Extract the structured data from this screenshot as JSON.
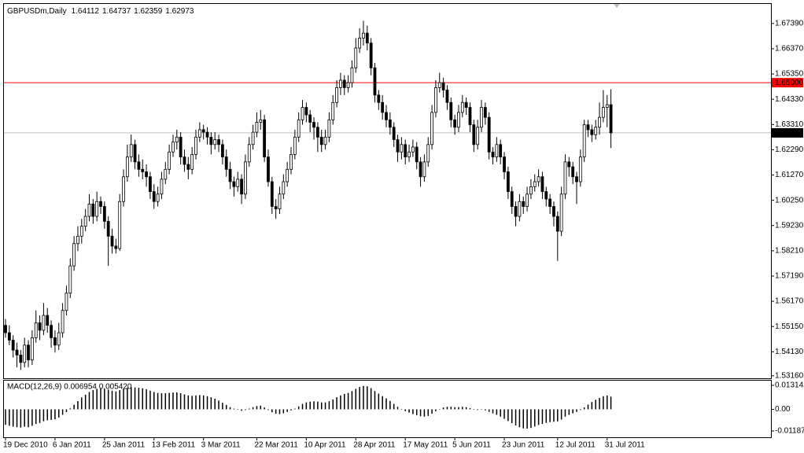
{
  "chart_data": {
    "type": "candlestick",
    "symbol": "GBPUSDm,Daily",
    "indicator_title": "MACD(12,26,9) 0.006954 0.005420",
    "colors": {
      "bull": "#ffffff",
      "bear": "#000000",
      "wick": "#000000",
      "macd": "#000000"
    },
    "ylim": [
      1.5306,
      1.6818
    ],
    "yticks": [
      {
        "value": 1.6739,
        "label": "1.67390"
      },
      {
        "value": 1.6637,
        "label": "1.66370"
      },
      {
        "value": 1.6535,
        "label": "1.65350"
      },
      {
        "value": 1.6433,
        "label": "1.64330"
      },
      {
        "value": 1.6331,
        "label": "1.63310"
      },
      {
        "value": 1.6229,
        "label": "1.62290"
      },
      {
        "value": 1.6127,
        "label": "1.61270"
      },
      {
        "value": 1.6025,
        "label": "1.60250"
      },
      {
        "value": 1.5923,
        "label": "1.59230"
      },
      {
        "value": 1.5821,
        "label": "1.58210"
      },
      {
        "value": 1.5719,
        "label": "1.57190"
      },
      {
        "value": 1.5617,
        "label": "1.56170"
      },
      {
        "value": 1.5515,
        "label": "1.55150"
      },
      {
        "value": 1.5413,
        "label": "1.54130"
      },
      {
        "value": 1.5316,
        "label": "1.53160"
      }
    ],
    "level_line": {
      "value": 1.65,
      "label": "1.65000",
      "color": "#ff0000"
    },
    "price_line_color": "#c0c0c0",
    "macd_ylim": [
      -0.0153,
      0.0157
    ],
    "macd_yticks": [
      0.013143,
      {
        "value": 0,
        "label": "0.00"
      },
      -0.01187
    ],
    "categories": [
      "19 Dec 2010",
      null,
      null,
      null,
      null,
      null,
      null,
      null,
      null,
      null,
      null,
      null,
      null,
      "6 Jan 2011",
      null,
      null,
      null,
      null,
      null,
      null,
      null,
      null,
      null,
      null,
      null,
      null,
      "25 Jan 2011",
      null,
      null,
      null,
      null,
      null,
      null,
      null,
      null,
      null,
      null,
      null,
      null,
      "13 Feb 2011",
      null,
      null,
      null,
      null,
      null,
      null,
      null,
      null,
      null,
      null,
      null,
      null,
      "3 Mar 2011",
      null,
      null,
      null,
      null,
      null,
      null,
      null,
      null,
      null,
      null,
      null,
      null,
      null,
      "22 Mar 2011",
      null,
      null,
      null,
      null,
      null,
      null,
      null,
      null,
      null,
      null,
      null,
      null,
      "10 Apr 2011",
      null,
      null,
      null,
      null,
      null,
      null,
      null,
      null,
      null,
      null,
      null,
      null,
      "28 Apr 2011",
      null,
      null,
      null,
      null,
      null,
      null,
      null,
      null,
      null,
      null,
      null,
      null,
      "17 May 2011",
      null,
      null,
      null,
      null,
      null,
      null,
      null,
      null,
      null,
      null,
      null,
      null,
      "5 Jun 2011",
      null,
      null,
      null,
      null,
      null,
      null,
      null,
      null,
      null,
      null,
      null,
      null,
      "23 Jun 2011",
      null,
      null,
      null,
      null,
      null,
      null,
      null,
      null,
      null,
      null,
      null,
      null,
      null,
      "12 Jul 2011",
      null,
      null,
      null,
      null,
      null,
      null,
      null,
      null,
      null,
      null,
      null,
      null,
      "31 Jul 2011",
      null
    ],
    "candles": [
      [
        1.552,
        1.5545,
        1.547,
        1.549
      ],
      [
        1.549,
        1.552,
        1.544,
        1.546
      ],
      [
        1.546,
        1.548,
        1.539,
        1.542
      ],
      [
        1.542,
        1.545,
        1.535,
        1.54
      ],
      [
        1.54,
        1.542,
        1.534,
        1.537
      ],
      [
        1.537,
        1.547,
        1.535,
        1.544
      ],
      [
        1.544,
        1.546,
        1.535,
        1.538
      ],
      [
        1.538,
        1.55,
        1.536,
        1.547
      ],
      [
        1.547,
        1.558,
        1.545,
        1.553
      ],
      [
        1.553,
        1.556,
        1.546,
        1.55
      ],
      [
        1.55,
        1.561,
        1.548,
        1.556
      ],
      [
        1.556,
        1.559,
        1.549,
        1.552
      ],
      [
        1.552,
        1.554,
        1.543,
        1.547
      ],
      [
        1.547,
        1.55,
        1.541,
        1.544
      ],
      [
        1.544,
        1.553,
        1.542,
        1.549
      ],
      [
        1.549,
        1.561,
        1.547,
        1.558
      ],
      [
        1.558,
        1.568,
        1.556,
        1.565
      ],
      [
        1.565,
        1.579,
        1.563,
        1.576
      ],
      [
        1.576,
        1.588,
        1.574,
        1.585
      ],
      [
        1.585,
        1.592,
        1.582,
        1.588
      ],
      [
        1.588,
        1.595,
        1.585,
        1.592
      ],
      [
        1.592,
        1.599,
        1.59,
        1.596
      ],
      [
        1.596,
        1.605,
        1.594,
        1.601
      ],
      [
        1.601,
        1.603,
        1.593,
        1.596
      ],
      [
        1.596,
        1.606,
        1.594,
        1.602
      ],
      [
        1.602,
        1.604,
        1.597,
        1.6
      ],
      [
        1.6,
        1.602,
        1.591,
        1.594
      ],
      [
        1.594,
        1.596,
        1.576,
        1.588
      ],
      [
        1.588,
        1.591,
        1.581,
        1.584
      ],
      [
        1.584,
        1.587,
        1.581,
        1.583
      ],
      [
        1.583,
        1.605,
        1.582,
        1.602
      ],
      [
        1.602,
        1.615,
        1.6,
        1.612
      ],
      [
        1.612,
        1.625,
        1.61,
        1.62
      ],
      [
        1.62,
        1.629,
        1.618,
        1.625
      ],
      [
        1.625,
        1.627,
        1.615,
        1.618
      ],
      [
        1.618,
        1.621,
        1.612,
        1.615
      ],
      [
        1.615,
        1.619,
        1.611,
        1.614
      ],
      [
        1.614,
        1.617,
        1.608,
        1.612
      ],
      [
        1.612,
        1.614,
        1.603,
        1.606
      ],
      [
        1.606,
        1.609,
        1.599,
        1.602
      ],
      [
        1.602,
        1.608,
        1.6,
        1.605
      ],
      [
        1.605,
        1.614,
        1.603,
        1.611
      ],
      [
        1.611,
        1.618,
        1.609,
        1.615
      ],
      [
        1.615,
        1.625,
        1.613,
        1.622
      ],
      [
        1.622,
        1.629,
        1.62,
        1.626
      ],
      [
        1.626,
        1.631,
        1.623,
        1.628
      ],
      [
        1.628,
        1.63,
        1.617,
        1.62
      ],
      [
        1.62,
        1.623,
        1.614,
        1.617
      ],
      [
        1.617,
        1.62,
        1.611,
        1.615
      ],
      [
        1.615,
        1.624,
        1.613,
        1.621
      ],
      [
        1.621,
        1.631,
        1.619,
        1.628
      ],
      [
        1.628,
        1.634,
        1.626,
        1.631
      ],
      [
        1.631,
        1.633,
        1.627,
        1.63
      ],
      [
        1.63,
        1.632,
        1.625,
        1.628
      ],
      [
        1.628,
        1.63,
        1.621,
        1.625
      ],
      [
        1.625,
        1.63,
        1.623,
        1.627
      ],
      [
        1.627,
        1.629,
        1.622,
        1.625
      ],
      [
        1.625,
        1.627,
        1.617,
        1.62
      ],
      [
        1.62,
        1.623,
        1.612,
        1.615
      ],
      [
        1.615,
        1.618,
        1.607,
        1.61
      ],
      [
        1.61,
        1.612,
        1.604,
        1.608
      ],
      [
        1.608,
        1.614,
        1.606,
        1.611
      ],
      [
        1.611,
        1.613,
        1.601,
        1.605
      ],
      [
        1.605,
        1.621,
        1.603,
        1.618
      ],
      [
        1.618,
        1.628,
        1.616,
        1.625
      ],
      [
        1.625,
        1.633,
        1.623,
        1.63
      ],
      [
        1.63,
        1.638,
        1.628,
        1.634
      ],
      [
        1.634,
        1.639,
        1.631,
        1.635
      ],
      [
        1.635,
        1.637,
        1.618,
        1.62
      ],
      [
        1.62,
        1.623,
        1.608,
        1.61
      ],
      [
        1.61,
        1.612,
        1.597,
        1.6
      ],
      [
        1.6,
        1.603,
        1.595,
        1.599
      ],
      [
        1.599,
        1.608,
        1.597,
        1.605
      ],
      [
        1.605,
        1.613,
        1.603,
        1.61
      ],
      [
        1.61,
        1.618,
        1.608,
        1.615
      ],
      [
        1.615,
        1.624,
        1.613,
        1.621
      ],
      [
        1.621,
        1.631,
        1.619,
        1.628
      ],
      [
        1.628,
        1.638,
        1.626,
        1.635
      ],
      [
        1.635,
        1.643,
        1.633,
        1.64
      ],
      [
        1.64,
        1.642,
        1.634,
        1.637
      ],
      [
        1.637,
        1.639,
        1.63,
        1.634
      ],
      [
        1.634,
        1.636,
        1.627,
        1.632
      ],
      [
        1.632,
        1.634,
        1.622,
        1.628
      ],
      [
        1.628,
        1.631,
        1.622,
        1.625
      ],
      [
        1.625,
        1.631,
        1.623,
        1.628
      ],
      [
        1.628,
        1.638,
        1.626,
        1.635
      ],
      [
        1.635,
        1.645,
        1.633,
        1.642
      ],
      [
        1.642,
        1.651,
        1.64,
        1.648
      ],
      [
        1.648,
        1.654,
        1.645,
        1.651
      ],
      [
        1.651,
        1.653,
        1.645,
        1.648
      ],
      [
        1.648,
        1.653,
        1.646,
        1.65
      ],
      [
        1.65,
        1.659,
        1.648,
        1.656
      ],
      [
        1.656,
        1.668,
        1.654,
        1.664
      ],
      [
        1.664,
        1.672,
        1.662,
        1.668
      ],
      [
        1.668,
        1.675,
        1.665,
        1.67
      ],
      [
        1.67,
        1.673,
        1.663,
        1.666
      ],
      [
        1.666,
        1.668,
        1.653,
        1.656
      ],
      [
        1.656,
        1.658,
        1.642,
        1.645
      ],
      [
        1.645,
        1.647,
        1.639,
        1.642
      ],
      [
        1.642,
        1.645,
        1.635,
        1.638
      ],
      [
        1.638,
        1.641,
        1.632,
        1.635
      ],
      [
        1.635,
        1.638,
        1.629,
        1.632
      ],
      [
        1.632,
        1.634,
        1.624,
        1.627
      ],
      [
        1.627,
        1.629,
        1.618,
        1.622
      ],
      [
        1.622,
        1.628,
        1.619,
        1.625
      ],
      [
        1.625,
        1.627,
        1.617,
        1.62
      ],
      [
        1.62,
        1.625,
        1.618,
        1.622
      ],
      [
        1.622,
        1.627,
        1.62,
        1.624
      ],
      [
        1.624,
        1.626,
        1.615,
        1.618
      ],
      [
        1.618,
        1.62,
        1.608,
        1.612
      ],
      [
        1.612,
        1.621,
        1.61,
        1.618
      ],
      [
        1.618,
        1.628,
        1.616,
        1.625
      ],
      [
        1.625,
        1.641,
        1.623,
        1.638
      ],
      [
        1.638,
        1.651,
        1.636,
        1.648
      ],
      [
        1.648,
        1.654,
        1.646,
        1.65
      ],
      [
        1.65,
        1.652,
        1.644,
        1.647
      ],
      [
        1.647,
        1.649,
        1.639,
        1.642
      ],
      [
        1.642,
        1.644,
        1.632,
        1.635
      ],
      [
        1.635,
        1.637,
        1.629,
        1.632
      ],
      [
        1.632,
        1.641,
        1.63,
        1.638
      ],
      [
        1.638,
        1.645,
        1.636,
        1.642
      ],
      [
        1.642,
        1.644,
        1.637,
        1.64
      ],
      [
        1.64,
        1.642,
        1.63,
        1.633
      ],
      [
        1.633,
        1.635,
        1.622,
        1.625
      ],
      [
        1.625,
        1.635,
        1.623,
        1.632
      ],
      [
        1.632,
        1.643,
        1.63,
        1.64
      ],
      [
        1.64,
        1.642,
        1.633,
        1.636
      ],
      [
        1.636,
        1.638,
        1.619,
        1.622
      ],
      [
        1.622,
        1.624,
        1.617,
        1.62
      ],
      [
        1.62,
        1.628,
        1.618,
        1.625
      ],
      [
        1.625,
        1.627,
        1.617,
        1.62
      ],
      [
        1.62,
        1.622,
        1.611,
        1.614
      ],
      [
        1.614,
        1.616,
        1.603,
        1.606
      ],
      [
        1.606,
        1.608,
        1.597,
        1.6
      ],
      [
        1.6,
        1.602,
        1.592,
        1.596
      ],
      [
        1.596,
        1.605,
        1.594,
        1.602
      ],
      [
        1.602,
        1.604,
        1.597,
        1.6
      ],
      [
        1.6,
        1.608,
        1.598,
        1.605
      ],
      [
        1.605,
        1.611,
        1.603,
        1.608
      ],
      [
        1.608,
        1.613,
        1.606,
        1.61
      ],
      [
        1.61,
        1.615,
        1.608,
        1.612
      ],
      [
        1.612,
        1.614,
        1.603,
        1.606
      ],
      [
        1.606,
        1.608,
        1.6,
        1.603
      ],
      [
        1.603,
        1.605,
        1.597,
        1.6
      ],
      [
        1.6,
        1.602,
        1.592,
        1.596
      ],
      [
        1.596,
        1.598,
        1.578,
        1.59
      ],
      [
        1.59,
        1.608,
        1.588,
        1.605
      ],
      [
        1.605,
        1.621,
        1.603,
        1.618
      ],
      [
        1.618,
        1.62,
        1.612,
        1.616
      ],
      [
        1.616,
        1.618,
        1.609,
        1.612
      ],
      [
        1.612,
        1.614,
        1.601,
        1.61
      ],
      [
        1.61,
        1.623,
        1.608,
        1.62
      ],
      [
        1.62,
        1.635,
        1.618,
        1.633
      ],
      [
        1.633,
        1.635,
        1.628,
        1.631
      ],
      [
        1.631,
        1.633,
        1.626,
        1.629
      ],
      [
        1.629,
        1.635,
        1.627,
        1.632
      ],
      [
        1.632,
        1.642,
        1.629,
        1.636
      ],
      [
        1.636,
        1.647,
        1.634,
        1.64
      ],
      [
        1.64,
        1.645,
        1.632,
        1.6411
      ],
      [
        1.64112,
        1.64737,
        1.62359,
        1.62973
      ]
    ],
    "macd": [
      -0.0085,
      -0.009,
      -0.0095,
      -0.0098,
      -0.01,
      -0.0095,
      -0.0098,
      -0.009,
      -0.008,
      -0.0075,
      -0.0065,
      -0.006,
      -0.0058,
      -0.0055,
      -0.0045,
      -0.003,
      -0.0015,
      0.0005,
      0.0025,
      0.0045,
      0.0065,
      0.008,
      0.0095,
      0.0105,
      0.0112,
      0.0115,
      0.0112,
      0.0108,
      0.0102,
      0.0098,
      0.0105,
      0.0112,
      0.0118,
      0.0122,
      0.012,
      0.0118,
      0.0115,
      0.011,
      0.0102,
      0.0095,
      0.009,
      0.0088,
      0.0088,
      0.009,
      0.0092,
      0.0093,
      0.0088,
      0.0082,
      0.0076,
      0.0074,
      0.0076,
      0.0078,
      0.0076,
      0.0072,
      0.0066,
      0.0058,
      0.0048,
      0.0036,
      0.0024,
      0.0012,
      0.0004,
      -0.0002,
      -0.0008,
      -0.0004,
      0.0004,
      0.0012,
      0.0018,
      0.002,
      0.001,
      -0.0004,
      -0.0016,
      -0.0024,
      -0.0026,
      -0.0022,
      -0.0014,
      -0.0006,
      0.0004,
      0.0016,
      0.003,
      0.0038,
      0.0042,
      0.0044,
      0.0042,
      0.0038,
      0.0038,
      0.0044,
      0.0054,
      0.0066,
      0.0076,
      0.0084,
      0.009,
      0.01,
      0.0112,
      0.0122,
      0.0128,
      0.0126,
      0.0116,
      0.01,
      0.0086,
      0.0072,
      0.006,
      0.0046,
      0.003,
      0.0014,
      0.0002,
      -0.001,
      -0.0018,
      -0.0026,
      -0.0032,
      -0.0038,
      -0.004,
      -0.0036,
      -0.0024,
      -0.001,
      0.0002,
      0.001,
      0.0014,
      0.0014,
      0.0012,
      0.0012,
      0.0014,
      0.0012,
      0.0006,
      -0.0002,
      -0.0004,
      -0.0002,
      -0.0006,
      -0.0014,
      -0.0022,
      -0.003,
      -0.004,
      -0.0052,
      -0.0064,
      -0.0076,
      -0.0088,
      -0.0098,
      -0.0104,
      -0.0106,
      -0.0102,
      -0.0094,
      -0.0086,
      -0.008,
      -0.0074,
      -0.007,
      -0.0068,
      -0.0066,
      -0.0056,
      -0.004,
      -0.003,
      -0.0022,
      -0.0014,
      -0.0004,
      0.001,
      0.0026,
      0.004,
      0.0052,
      0.0062,
      0.0072,
      0.0076,
      0.006954
    ]
  }
}
